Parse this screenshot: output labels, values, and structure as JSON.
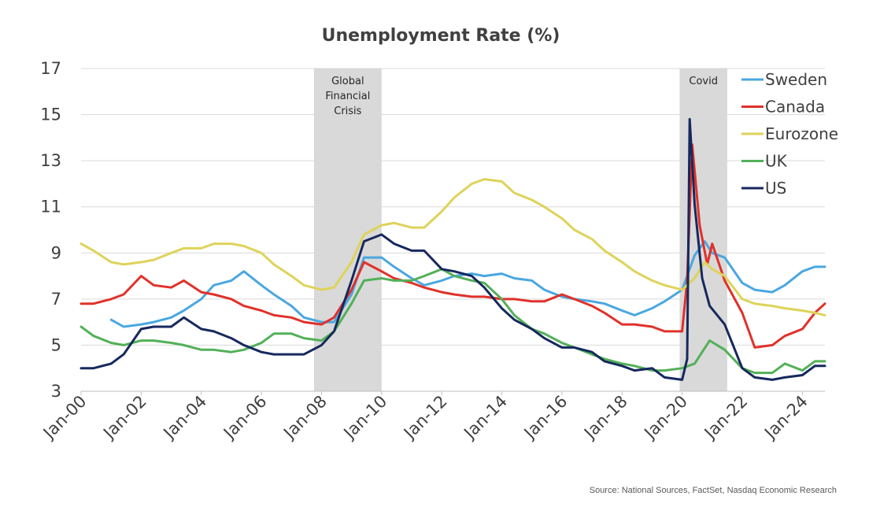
{
  "chart_data": {
    "type": "line",
    "title": "Unemployment Rate (%)",
    "source": "Source: National Sources, FactSet, Nasdaq Economic Research",
    "xlim": [
      "2000-01",
      "2024-10"
    ],
    "ylim": [
      3,
      17
    ],
    "yticks": [
      3,
      5,
      7,
      9,
      11,
      13,
      15,
      17
    ],
    "xticks": [
      {
        "date": "2000-01",
        "label": "Jan-00"
      },
      {
        "date": "2002-01",
        "label": "Jan-02"
      },
      {
        "date": "2004-01",
        "label": "Jan-04"
      },
      {
        "date": "2006-01",
        "label": "Jan-06"
      },
      {
        "date": "2008-01",
        "label": "Jan-08"
      },
      {
        "date": "2010-01",
        "label": "Jan-10"
      },
      {
        "date": "2012-01",
        "label": "Jan-12"
      },
      {
        "date": "2014-01",
        "label": "Jan-14"
      },
      {
        "date": "2016-01",
        "label": "Jan-16"
      },
      {
        "date": "2018-01",
        "label": "Jan-18"
      },
      {
        "date": "2020-01",
        "label": "Jan-20"
      },
      {
        "date": "2022-01",
        "label": "Jan-22"
      },
      {
        "date": "2024-01",
        "label": "Jan-24"
      }
    ],
    "grid": "horizontal",
    "legend_position": "top-right",
    "shaded_periods": [
      {
        "label_lines": [
          "Global",
          "Financial",
          "Crisis"
        ],
        "start": "2007-10",
        "end": "2010-01"
      },
      {
        "label_lines": [
          "Covid"
        ],
        "start": "2019-12",
        "end": "2021-07"
      }
    ],
    "series": [
      {
        "name": "Sweden",
        "color": "#4aa7e0",
        "points": [
          [
            "2001-01",
            6.1
          ],
          [
            "2001-06",
            5.8
          ],
          [
            "2002-01",
            5.9
          ],
          [
            "2002-06",
            6.0
          ],
          [
            "2003-01",
            6.2
          ],
          [
            "2003-06",
            6.5
          ],
          [
            "2004-01",
            7.0
          ],
          [
            "2004-06",
            7.6
          ],
          [
            "2005-01",
            7.8
          ],
          [
            "2005-06",
            8.2
          ],
          [
            "2006-01",
            7.6
          ],
          [
            "2006-06",
            7.2
          ],
          [
            "2007-01",
            6.7
          ],
          [
            "2007-06",
            6.2
          ],
          [
            "2008-01",
            6.0
          ],
          [
            "2008-06",
            6.0
          ],
          [
            "2009-01",
            7.2
          ],
          [
            "2009-06",
            8.8
          ],
          [
            "2010-01",
            8.8
          ],
          [
            "2010-06",
            8.4
          ],
          [
            "2011-01",
            7.9
          ],
          [
            "2011-06",
            7.6
          ],
          [
            "2012-01",
            7.8
          ],
          [
            "2012-06",
            8.0
          ],
          [
            "2013-01",
            8.1
          ],
          [
            "2013-06",
            8.0
          ],
          [
            "2014-01",
            8.1
          ],
          [
            "2014-06",
            7.9
          ],
          [
            "2015-01",
            7.8
          ],
          [
            "2015-06",
            7.4
          ],
          [
            "2016-01",
            7.1
          ],
          [
            "2016-06",
            7.0
          ],
          [
            "2017-01",
            6.9
          ],
          [
            "2017-06",
            6.8
          ],
          [
            "2018-01",
            6.5
          ],
          [
            "2018-06",
            6.3
          ],
          [
            "2019-01",
            6.6
          ],
          [
            "2019-06",
            6.9
          ],
          [
            "2020-01",
            7.4
          ],
          [
            "2020-06",
            8.9
          ],
          [
            "2020-10",
            9.5
          ],
          [
            "2021-01",
            9.0
          ],
          [
            "2021-06",
            8.8
          ],
          [
            "2022-01",
            7.7
          ],
          [
            "2022-06",
            7.4
          ],
          [
            "2023-01",
            7.3
          ],
          [
            "2023-06",
            7.6
          ],
          [
            "2024-01",
            8.2
          ],
          [
            "2024-06",
            8.4
          ],
          [
            "2024-10",
            8.4
          ]
        ]
      },
      {
        "name": "Canada",
        "color": "#e0312a",
        "points": [
          [
            "2000-01",
            6.8
          ],
          [
            "2000-06",
            6.8
          ],
          [
            "2001-01",
            7.0
          ],
          [
            "2001-06",
            7.2
          ],
          [
            "2002-01",
            8.0
          ],
          [
            "2002-06",
            7.6
          ],
          [
            "2003-01",
            7.5
          ],
          [
            "2003-06",
            7.8
          ],
          [
            "2004-01",
            7.3
          ],
          [
            "2004-06",
            7.2
          ],
          [
            "2005-01",
            7.0
          ],
          [
            "2005-06",
            6.7
          ],
          [
            "2006-01",
            6.5
          ],
          [
            "2006-06",
            6.3
          ],
          [
            "2007-01",
            6.2
          ],
          [
            "2007-06",
            6.0
          ],
          [
            "2008-01",
            5.9
          ],
          [
            "2008-06",
            6.2
          ],
          [
            "2009-01",
            7.4
          ],
          [
            "2009-06",
            8.6
          ],
          [
            "2010-01",
            8.2
          ],
          [
            "2010-06",
            7.9
          ],
          [
            "2011-01",
            7.7
          ],
          [
            "2011-06",
            7.5
          ],
          [
            "2012-01",
            7.3
          ],
          [
            "2012-06",
            7.2
          ],
          [
            "2013-01",
            7.1
          ],
          [
            "2013-06",
            7.1
          ],
          [
            "2014-01",
            7.0
          ],
          [
            "2014-06",
            7.0
          ],
          [
            "2015-01",
            6.9
          ],
          [
            "2015-06",
            6.9
          ],
          [
            "2016-01",
            7.2
          ],
          [
            "2016-06",
            7.0
          ],
          [
            "2017-01",
            6.7
          ],
          [
            "2017-06",
            6.4
          ],
          [
            "2018-01",
            5.9
          ],
          [
            "2018-06",
            5.9
          ],
          [
            "2019-01",
            5.8
          ],
          [
            "2019-06",
            5.6
          ],
          [
            "2020-01",
            5.6
          ],
          [
            "2020-03",
            7.8
          ],
          [
            "2020-05",
            13.7
          ],
          [
            "2020-08",
            10.2
          ],
          [
            "2020-11",
            8.5
          ],
          [
            "2021-01",
            9.4
          ],
          [
            "2021-06",
            7.8
          ],
          [
            "2022-01",
            6.4
          ],
          [
            "2022-06",
            4.9
          ],
          [
            "2023-01",
            5.0
          ],
          [
            "2023-06",
            5.4
          ],
          [
            "2024-01",
            5.7
          ],
          [
            "2024-06",
            6.4
          ],
          [
            "2024-10",
            6.8
          ]
        ]
      },
      {
        "name": "Eurozone",
        "color": "#ded35a",
        "points": [
          [
            "2000-01",
            9.4
          ],
          [
            "2000-06",
            9.1
          ],
          [
            "2001-01",
            8.6
          ],
          [
            "2001-06",
            8.5
          ],
          [
            "2002-01",
            8.6
          ],
          [
            "2002-06",
            8.7
          ],
          [
            "2003-01",
            9.0
          ],
          [
            "2003-06",
            9.2
          ],
          [
            "2004-01",
            9.2
          ],
          [
            "2004-06",
            9.4
          ],
          [
            "2005-01",
            9.4
          ],
          [
            "2005-06",
            9.3
          ],
          [
            "2006-01",
            9.0
          ],
          [
            "2006-06",
            8.5
          ],
          [
            "2007-01",
            8.0
          ],
          [
            "2007-06",
            7.6
          ],
          [
            "2008-01",
            7.4
          ],
          [
            "2008-06",
            7.5
          ],
          [
            "2009-01",
            8.6
          ],
          [
            "2009-06",
            9.8
          ],
          [
            "2010-01",
            10.2
          ],
          [
            "2010-06",
            10.3
          ],
          [
            "2011-01",
            10.1
          ],
          [
            "2011-06",
            10.1
          ],
          [
            "2012-01",
            10.8
          ],
          [
            "2012-06",
            11.4
          ],
          [
            "2013-01",
            12.0
          ],
          [
            "2013-06",
            12.2
          ],
          [
            "2014-01",
            12.1
          ],
          [
            "2014-06",
            11.6
          ],
          [
            "2015-01",
            11.3
          ],
          [
            "2015-06",
            11.0
          ],
          [
            "2016-01",
            10.5
          ],
          [
            "2016-06",
            10.0
          ],
          [
            "2017-01",
            9.6
          ],
          [
            "2017-06",
            9.1
          ],
          [
            "2018-01",
            8.6
          ],
          [
            "2018-06",
            8.2
          ],
          [
            "2019-01",
            7.8
          ],
          [
            "2019-06",
            7.6
          ],
          [
            "2020-01",
            7.4
          ],
          [
            "2020-06",
            7.9
          ],
          [
            "2020-10",
            8.6
          ],
          [
            "2021-01",
            8.3
          ],
          [
            "2021-06",
            8.0
          ],
          [
            "2022-01",
            7.0
          ],
          [
            "2022-06",
            6.8
          ],
          [
            "2023-01",
            6.7
          ],
          [
            "2023-06",
            6.6
          ],
          [
            "2024-01",
            6.5
          ],
          [
            "2024-06",
            6.4
          ],
          [
            "2024-10",
            6.3
          ]
        ]
      },
      {
        "name": "UK",
        "color": "#53b058",
        "points": [
          [
            "2000-01",
            5.8
          ],
          [
            "2000-06",
            5.4
          ],
          [
            "2001-01",
            5.1
          ],
          [
            "2001-06",
            5.0
          ],
          [
            "2002-01",
            5.2
          ],
          [
            "2002-06",
            5.2
          ],
          [
            "2003-01",
            5.1
          ],
          [
            "2003-06",
            5.0
          ],
          [
            "2004-01",
            4.8
          ],
          [
            "2004-06",
            4.8
          ],
          [
            "2005-01",
            4.7
          ],
          [
            "2005-06",
            4.8
          ],
          [
            "2006-01",
            5.1
          ],
          [
            "2006-06",
            5.5
          ],
          [
            "2007-01",
            5.5
          ],
          [
            "2007-06",
            5.3
          ],
          [
            "2008-01",
            5.2
          ],
          [
            "2008-06",
            5.6
          ],
          [
            "2009-01",
            6.8
          ],
          [
            "2009-06",
            7.8
          ],
          [
            "2010-01",
            7.9
          ],
          [
            "2010-06",
            7.8
          ],
          [
            "2011-01",
            7.8
          ],
          [
            "2011-06",
            8.0
          ],
          [
            "2012-01",
            8.3
          ],
          [
            "2012-06",
            8.0
          ],
          [
            "2013-01",
            7.8
          ],
          [
            "2013-06",
            7.7
          ],
          [
            "2014-01",
            7.0
          ],
          [
            "2014-06",
            6.3
          ],
          [
            "2015-01",
            5.7
          ],
          [
            "2015-06",
            5.5
          ],
          [
            "2016-01",
            5.1
          ],
          [
            "2016-06",
            4.9
          ],
          [
            "2017-01",
            4.6
          ],
          [
            "2017-06",
            4.4
          ],
          [
            "2018-01",
            4.2
          ],
          [
            "2018-06",
            4.1
          ],
          [
            "2019-01",
            3.9
          ],
          [
            "2019-06",
            3.9
          ],
          [
            "2020-01",
            4.0
          ],
          [
            "2020-06",
            4.2
          ],
          [
            "2020-12",
            5.2
          ],
          [
            "2021-06",
            4.8
          ],
          [
            "2022-01",
            4.0
          ],
          [
            "2022-06",
            3.8
          ],
          [
            "2023-01",
            3.8
          ],
          [
            "2023-06",
            4.2
          ],
          [
            "2024-01",
            3.9
          ],
          [
            "2024-06",
            4.3
          ],
          [
            "2024-10",
            4.3
          ]
        ]
      },
      {
        "name": "US",
        "color": "#16285e",
        "points": [
          [
            "2000-01",
            4.0
          ],
          [
            "2000-06",
            4.0
          ],
          [
            "2001-01",
            4.2
          ],
          [
            "2001-06",
            4.6
          ],
          [
            "2002-01",
            5.7
          ],
          [
            "2002-06",
            5.8
          ],
          [
            "2003-01",
            5.8
          ],
          [
            "2003-06",
            6.2
          ],
          [
            "2004-01",
            5.7
          ],
          [
            "2004-06",
            5.6
          ],
          [
            "2005-01",
            5.3
          ],
          [
            "2005-06",
            5.0
          ],
          [
            "2006-01",
            4.7
          ],
          [
            "2006-06",
            4.6
          ],
          [
            "2007-01",
            4.6
          ],
          [
            "2007-06",
            4.6
          ],
          [
            "2008-01",
            5.0
          ],
          [
            "2008-06",
            5.6
          ],
          [
            "2009-01",
            7.8
          ],
          [
            "2009-06",
            9.5
          ],
          [
            "2010-01",
            9.8
          ],
          [
            "2010-06",
            9.4
          ],
          [
            "2011-01",
            9.1
          ],
          [
            "2011-06",
            9.1
          ],
          [
            "2012-01",
            8.3
          ],
          [
            "2012-06",
            8.2
          ],
          [
            "2013-01",
            8.0
          ],
          [
            "2013-06",
            7.5
          ],
          [
            "2014-01",
            6.6
          ],
          [
            "2014-06",
            6.1
          ],
          [
            "2015-01",
            5.7
          ],
          [
            "2015-06",
            5.3
          ],
          [
            "2016-01",
            4.9
          ],
          [
            "2016-06",
            4.9
          ],
          [
            "2017-01",
            4.7
          ],
          [
            "2017-06",
            4.3
          ],
          [
            "2018-01",
            4.1
          ],
          [
            "2018-06",
            3.9
          ],
          [
            "2019-01",
            4.0
          ],
          [
            "2019-06",
            3.6
          ],
          [
            "2020-01",
            3.5
          ],
          [
            "2020-03",
            4.4
          ],
          [
            "2020-04",
            14.8
          ],
          [
            "2020-06",
            11.1
          ],
          [
            "2020-09",
            7.9
          ],
          [
            "2020-12",
            6.7
          ],
          [
            "2021-06",
            5.9
          ],
          [
            "2022-01",
            4.0
          ],
          [
            "2022-06",
            3.6
          ],
          [
            "2023-01",
            3.5
          ],
          [
            "2023-06",
            3.6
          ],
          [
            "2024-01",
            3.7
          ],
          [
            "2024-06",
            4.1
          ],
          [
            "2024-10",
            4.1
          ]
        ]
      }
    ]
  }
}
